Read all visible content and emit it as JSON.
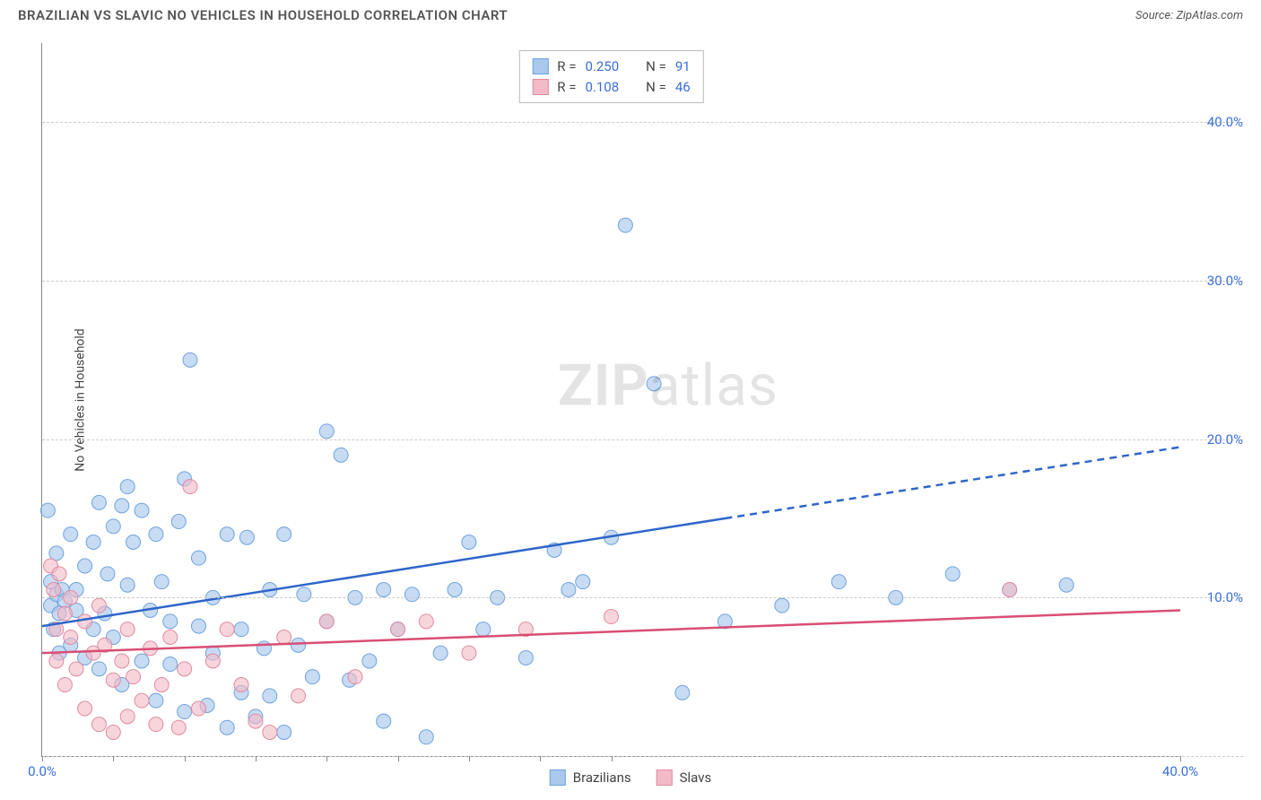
{
  "header": {
    "title": "BRAZILIAN VS SLAVIC NO VEHICLES IN HOUSEHOLD CORRELATION CHART",
    "source_prefix": "Source: ",
    "source": "ZipAtlas.com"
  },
  "chart": {
    "type": "scatter",
    "ylabel": "No Vehicles in Household",
    "watermark": "ZIPatlas",
    "background_color": "#ffffff",
    "grid_color": "#cccccc",
    "axis_color": "#888888",
    "tick_label_color": "#3b6fd6",
    "xlim": [
      0,
      40
    ],
    "ylim": [
      0,
      45
    ],
    "x_ticks_percent": [
      0,
      2.5,
      5,
      7.5,
      10,
      12.5,
      15,
      17.5,
      20,
      40
    ],
    "x_tick_labels": {
      "0": "0.0%",
      "40": "40.0%"
    },
    "y_gridlines_percent": [
      0,
      10,
      20,
      30,
      40
    ],
    "y_tick_labels": {
      "10": "10.0%",
      "20": "20.0%",
      "30": "30.0%",
      "40": "40.0%"
    },
    "series": [
      {
        "name": "Brazilians",
        "color_fill": "#a9c8ec",
        "color_stroke": "#6fa3de",
        "marker_radius": 8,
        "marker_opacity": 0.65,
        "trend": {
          "color": "#2e66c9",
          "width": 2.5,
          "x1": 0,
          "y1": 8.2,
          "x2_solid": 24,
          "y2_solid": 15.0,
          "x2_dash": 40,
          "y2_dash": 19.5
        },
        "stats": {
          "R": "0.250",
          "N": "91"
        },
        "points": [
          [
            0.2,
            15.5
          ],
          [
            0.3,
            9.5
          ],
          [
            0.3,
            11.0
          ],
          [
            0.4,
            8.0
          ],
          [
            0.5,
            10.2
          ],
          [
            0.5,
            12.8
          ],
          [
            0.6,
            9.0
          ],
          [
            0.6,
            6.5
          ],
          [
            0.7,
            10.5
          ],
          [
            0.8,
            9.8
          ],
          [
            1.0,
            14.0
          ],
          [
            1.0,
            7.0
          ],
          [
            1.2,
            9.2
          ],
          [
            1.2,
            10.5
          ],
          [
            1.5,
            12.0
          ],
          [
            1.5,
            6.2
          ],
          [
            1.8,
            13.5
          ],
          [
            1.8,
            8.0
          ],
          [
            2.0,
            16.0
          ],
          [
            2.0,
            5.5
          ],
          [
            2.2,
            9.0
          ],
          [
            2.3,
            11.5
          ],
          [
            2.5,
            14.5
          ],
          [
            2.5,
            7.5
          ],
          [
            2.8,
            15.8
          ],
          [
            2.8,
            4.5
          ],
          [
            3.0,
            10.8
          ],
          [
            3.0,
            17.0
          ],
          [
            3.2,
            13.5
          ],
          [
            3.5,
            15.5
          ],
          [
            3.5,
            6.0
          ],
          [
            3.8,
            9.2
          ],
          [
            4.0,
            14.0
          ],
          [
            4.0,
            3.5
          ],
          [
            4.2,
            11.0
          ],
          [
            4.5,
            8.5
          ],
          [
            4.5,
            5.8
          ],
          [
            4.8,
            14.8
          ],
          [
            5.0,
            17.5
          ],
          [
            5.0,
            2.8
          ],
          [
            5.2,
            25.0
          ],
          [
            5.5,
            8.2
          ],
          [
            5.5,
            12.5
          ],
          [
            5.8,
            3.2
          ],
          [
            6.0,
            6.5
          ],
          [
            6.0,
            10.0
          ],
          [
            6.5,
            1.8
          ],
          [
            6.5,
            14.0
          ],
          [
            7.0,
            8.0
          ],
          [
            7.0,
            4.0
          ],
          [
            7.2,
            13.8
          ],
          [
            7.5,
            2.5
          ],
          [
            7.8,
            6.8
          ],
          [
            8.0,
            10.5
          ],
          [
            8.0,
            3.8
          ],
          [
            8.5,
            14.0
          ],
          [
            8.5,
            1.5
          ],
          [
            9.0,
            7.0
          ],
          [
            9.2,
            10.2
          ],
          [
            9.5,
            5.0
          ],
          [
            10.0,
            20.5
          ],
          [
            10.0,
            8.5
          ],
          [
            10.5,
            19.0
          ],
          [
            10.8,
            4.8
          ],
          [
            11.0,
            10.0
          ],
          [
            11.5,
            6.0
          ],
          [
            12.0,
            10.5
          ],
          [
            12.0,
            2.2
          ],
          [
            12.5,
            8.0
          ],
          [
            13.0,
            10.2
          ],
          [
            13.5,
            1.2
          ],
          [
            14.0,
            6.5
          ],
          [
            14.5,
            10.5
          ],
          [
            15.0,
            13.5
          ],
          [
            15.5,
            8.0
          ],
          [
            16.0,
            10.0
          ],
          [
            17.0,
            6.2
          ],
          [
            18.0,
            13.0
          ],
          [
            18.5,
            10.5
          ],
          [
            19.0,
            11.0
          ],
          [
            20.0,
            13.8
          ],
          [
            20.5,
            33.5
          ],
          [
            21.5,
            23.5
          ],
          [
            22.5,
            4.0
          ],
          [
            24.0,
            8.5
          ],
          [
            26.0,
            9.5
          ],
          [
            28.0,
            11.0
          ],
          [
            30.0,
            10.0
          ],
          [
            32.0,
            11.5
          ],
          [
            34.0,
            10.5
          ],
          [
            36.0,
            10.8
          ]
        ]
      },
      {
        "name": "Slavs",
        "color_fill": "#f3b9c7",
        "color_stroke": "#e18aa0",
        "marker_radius": 8,
        "marker_opacity": 0.6,
        "trend": {
          "color": "#d94e74",
          "width": 2.5,
          "x1": 0,
          "y1": 6.5,
          "x2_solid": 40,
          "y2_solid": 9.2,
          "x2_dash": 40,
          "y2_dash": 9.2
        },
        "stats": {
          "R": "0.108",
          "N": "46"
        },
        "points": [
          [
            0.3,
            12.0
          ],
          [
            0.4,
            10.5
          ],
          [
            0.5,
            8.0
          ],
          [
            0.5,
            6.0
          ],
          [
            0.6,
            11.5
          ],
          [
            0.8,
            9.0
          ],
          [
            0.8,
            4.5
          ],
          [
            1.0,
            7.5
          ],
          [
            1.0,
            10.0
          ],
          [
            1.2,
            5.5
          ],
          [
            1.5,
            8.5
          ],
          [
            1.5,
            3.0
          ],
          [
            1.8,
            6.5
          ],
          [
            2.0,
            9.5
          ],
          [
            2.0,
            2.0
          ],
          [
            2.2,
            7.0
          ],
          [
            2.5,
            4.8
          ],
          [
            2.5,
            1.5
          ],
          [
            2.8,
            6.0
          ],
          [
            3.0,
            8.0
          ],
          [
            3.0,
            2.5
          ],
          [
            3.2,
            5.0
          ],
          [
            3.5,
            3.5
          ],
          [
            3.8,
            6.8
          ],
          [
            4.0,
            2.0
          ],
          [
            4.2,
            4.5
          ],
          [
            4.5,
            7.5
          ],
          [
            4.8,
            1.8
          ],
          [
            5.0,
            5.5
          ],
          [
            5.2,
            17.0
          ],
          [
            5.5,
            3.0
          ],
          [
            6.0,
            6.0
          ],
          [
            6.5,
            8.0
          ],
          [
            7.0,
            4.5
          ],
          [
            7.5,
            2.2
          ],
          [
            8.0,
            1.5
          ],
          [
            8.5,
            7.5
          ],
          [
            9.0,
            3.8
          ],
          [
            10.0,
            8.5
          ],
          [
            11.0,
            5.0
          ],
          [
            12.5,
            8.0
          ],
          [
            13.5,
            8.5
          ],
          [
            15.0,
            6.5
          ],
          [
            17.0,
            8.0
          ],
          [
            20.0,
            8.8
          ],
          [
            34.0,
            10.5
          ]
        ]
      }
    ],
    "legend_top": {
      "label_R": "R =",
      "label_N": "N ="
    },
    "legend_bottom": [
      {
        "label": "Brazilians",
        "fill": "#a9c8ec",
        "stroke": "#6fa3de"
      },
      {
        "label": "Slavs",
        "fill": "#f3b9c7",
        "stroke": "#e18aa0"
      }
    ]
  }
}
